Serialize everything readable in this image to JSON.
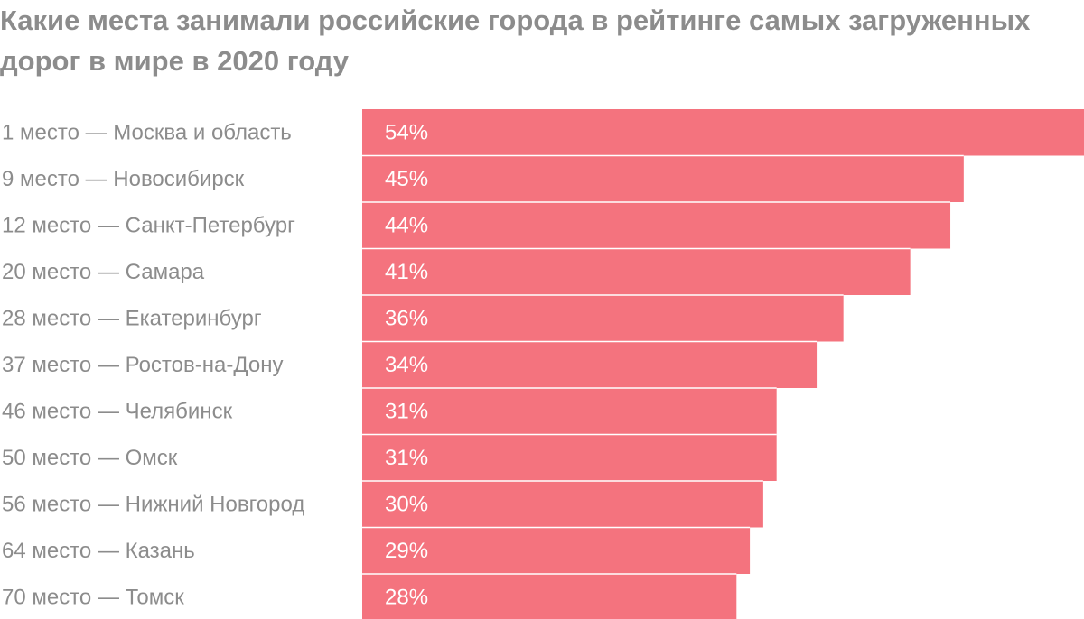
{
  "chart_data": {
    "type": "bar",
    "orientation": "horizontal",
    "title": "Какие места занимали российские города в рейтинге самых загруженных дорог в мире в 2020 году",
    "xlabel": "",
    "ylabel": "",
    "categories": [
      "1 место — Москва и область",
      "9 место — Новосибирск",
      "12 место — Санкт-Петербург",
      "20 место — Самара",
      "28 место — Екатеринбург",
      "37 место — Ростов-на-Дону",
      "46 место — Челябинск",
      "50 место — Омск",
      "56 место — Нижний Новгород",
      "64 место — Казань",
      "70 место — Томск"
    ],
    "values": [
      54,
      45,
      44,
      41,
      36,
      34,
      31,
      31,
      30,
      29,
      28
    ],
    "value_labels": [
      "54%",
      "45%",
      "44%",
      "41%",
      "36%",
      "34%",
      "31%",
      "31%",
      "30%",
      "29%",
      "28%"
    ],
    "unit": "%",
    "xlim": [
      0,
      54
    ],
    "grid": false,
    "legend": "none",
    "colors": {
      "bar": "#f4737e",
      "text": "#8c8c8c",
      "value_text": "#ffffff",
      "separator": "#ffffff"
    }
  }
}
